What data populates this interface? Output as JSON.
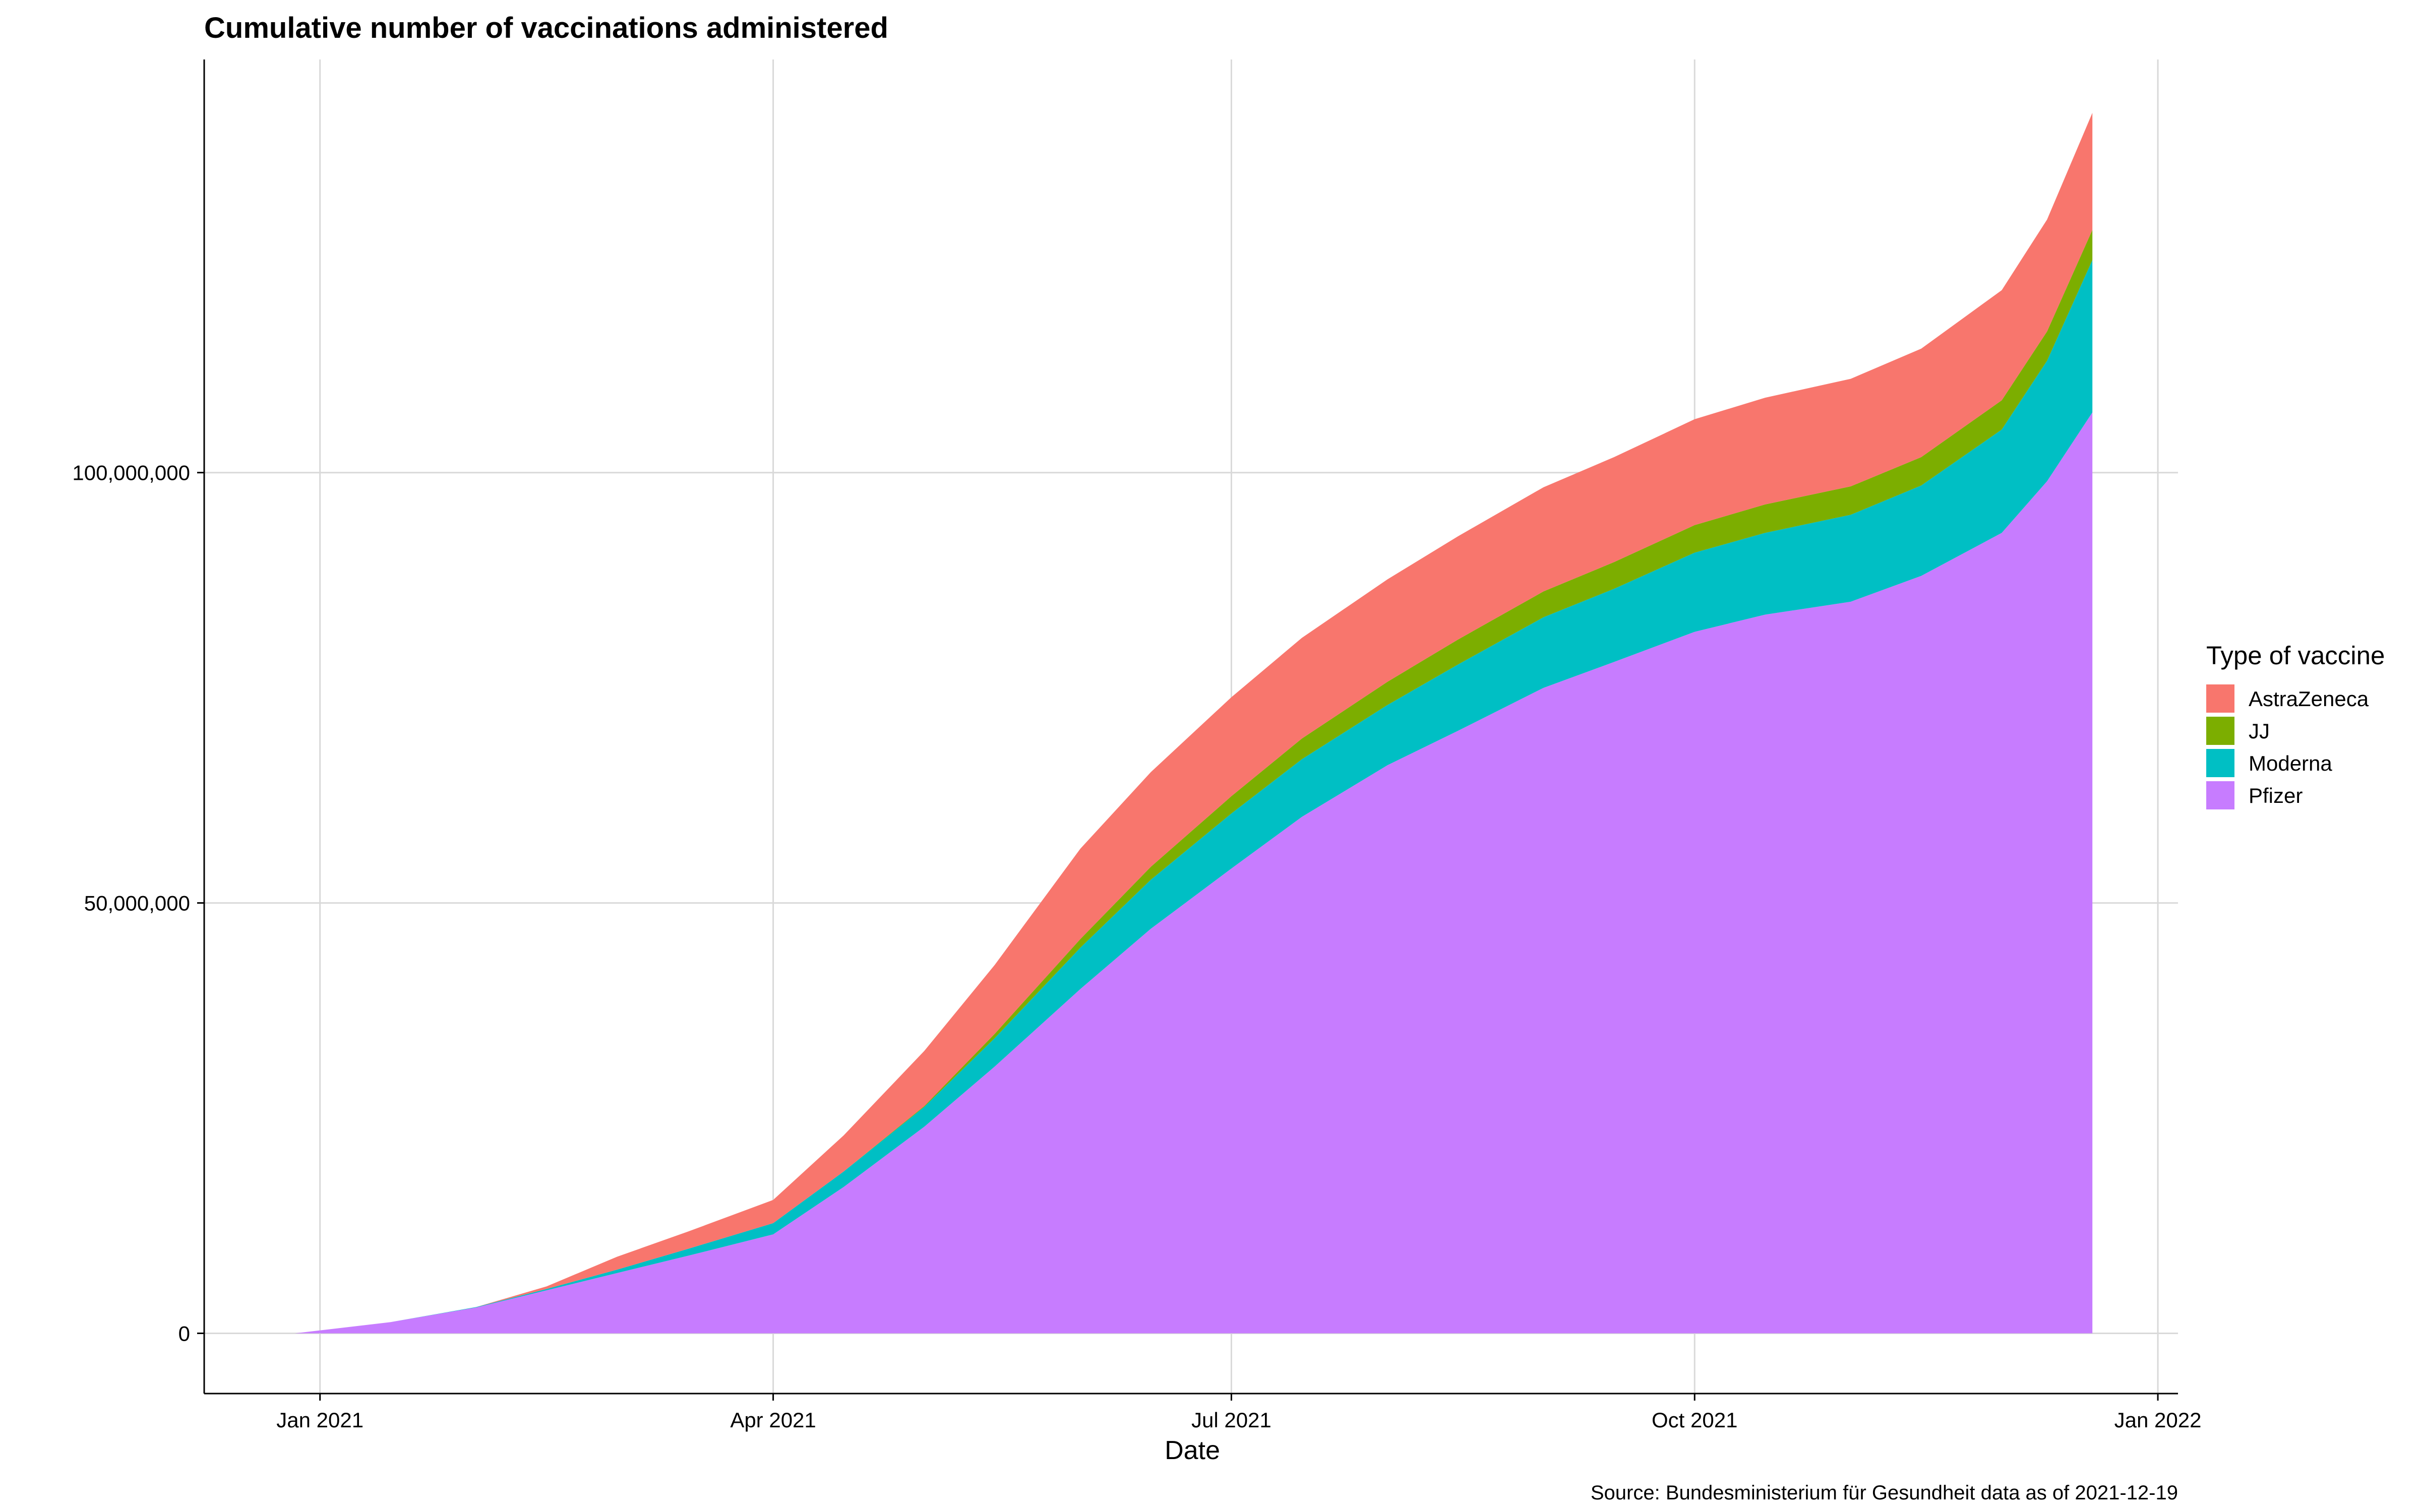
{
  "chart_data": {
    "type": "area",
    "stacked": true,
    "title": "Cumulative number of vaccinations administered",
    "xlabel": "Date",
    "ylabel": "",
    "caption": "Source: Bundesministerium für Gesundheit data as of 2021-12-19",
    "legend": {
      "title": "Type of vaccine",
      "placement": "right",
      "entries": [
        "AstraZeneca",
        "JJ",
        "Moderna",
        "Pfizer"
      ]
    },
    "x_ticks": [
      {
        "date": "2021-01-01",
        "label": "Jan 2021"
      },
      {
        "date": "2021-04-01",
        "label": "Apr 2021"
      },
      {
        "date": "2021-07-01",
        "label": "Jul 2021"
      },
      {
        "date": "2021-10-01",
        "label": "Oct 2021"
      },
      {
        "date": "2022-01-01",
        "label": "Jan 2022"
      }
    ],
    "y_ticks": [
      {
        "value": 0,
        "label": "0"
      },
      {
        "value": 50000000,
        "label": "50,000,000"
      },
      {
        "value": 100000000,
        "label": "100,000,000"
      }
    ],
    "xlim": [
      "2020-12-09",
      "2022-01-05"
    ],
    "ylim": [
      -7000000,
      148000000
    ],
    "grid": true,
    "x": [
      "2020-12-27",
      "2021-01-15",
      "2021-02-01",
      "2021-02-15",
      "2021-03-01",
      "2021-03-15",
      "2021-04-01",
      "2021-04-15",
      "2021-05-01",
      "2021-05-15",
      "2021-06-01",
      "2021-06-15",
      "2021-07-01",
      "2021-07-15",
      "2021-08-01",
      "2021-08-15",
      "2021-09-01",
      "2021-09-15",
      "2021-10-01",
      "2021-10-15",
      "2021-11-01",
      "2021-11-15",
      "2021-12-01",
      "2021-12-10",
      "2021-12-19"
    ],
    "series": [
      {
        "name": "Pfizer",
        "color": "#C77CFF",
        "values": [
          0,
          1300000,
          3000000,
          5000000,
          7000000,
          9000000,
          11500000,
          17000000,
          24000000,
          31000000,
          40000000,
          47000000,
          54000000,
          60000000,
          66000000,
          70000000,
          75000000,
          78000000,
          81500000,
          83500000,
          85000000,
          88000000,
          93000000,
          99000000,
          107000000
        ]
      },
      {
        "name": "Moderna",
        "color": "#00BFC4",
        "values": [
          0,
          0,
          50000,
          150000,
          400000,
          800000,
          1300000,
          1800000,
          2300000,
          3300000,
          4800000,
          5700000,
          6400000,
          6700000,
          7000000,
          7700000,
          8200000,
          8500000,
          9200000,
          9500000,
          10100000,
          10500000,
          12000000,
          14000000,
          17700000
        ]
      },
      {
        "name": "JJ",
        "color": "#7CAE00",
        "values": [
          0,
          0,
          0,
          0,
          0,
          0,
          0,
          0,
          100000,
          500000,
          1000000,
          1500000,
          2000000,
          2400000,
          2700000,
          2900000,
          3000000,
          3100000,
          3200000,
          3300000,
          3300000,
          3300000,
          3400000,
          3400000,
          3500000
        ]
      },
      {
        "name": "AstraZeneca",
        "color": "#F8766D",
        "values": [
          0,
          0,
          0,
          300000,
          1500000,
          2000000,
          2700000,
          4200000,
          6400000,
          8000000,
          10500000,
          11000000,
          11500000,
          11700000,
          11900000,
          12000000,
          12100000,
          12200000,
          12300000,
          12400000,
          12500000,
          12600000,
          12800000,
          13000000,
          13600000
        ]
      }
    ]
  }
}
